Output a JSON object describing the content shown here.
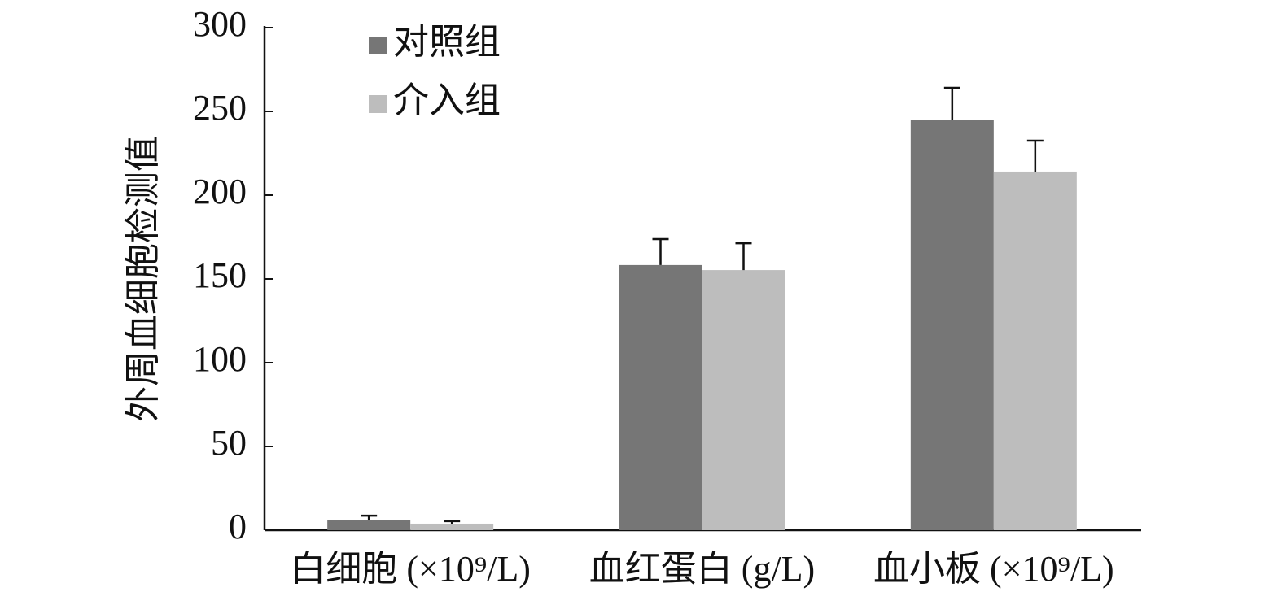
{
  "chart_data": {
    "type": "bar",
    "y_label": "外周血细胞检测值",
    "categories": [
      "白细胞 (×10⁹/L)",
      "血红蛋白 (g/L)",
      "血小板 (×10⁹/L)"
    ],
    "series": [
      {
        "name": "对照组",
        "color": "#767676",
        "values": [
          6.3,
          158.3,
          244.7
        ],
        "errors": [
          2.4,
          15.5,
          19.4
        ]
      },
      {
        "name": "介入组",
        "color": "#bdbdbd",
        "values": [
          3.9,
          155.3,
          214.1
        ],
        "errors": [
          1.5,
          16,
          18.4
        ]
      }
    ],
    "ylim": [
      0,
      300
    ],
    "yticks": [
      0,
      50,
      100,
      150,
      200,
      250,
      300
    ],
    "grid": false,
    "legend": "top-left"
  }
}
